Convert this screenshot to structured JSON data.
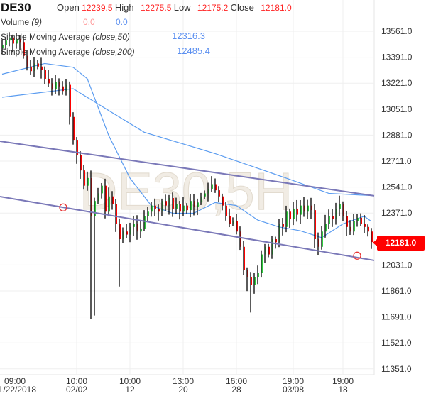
{
  "header": {
    "symbol": "DE30",
    "open_label": "Open",
    "open": "12239.5",
    "high_label": "High",
    "high": "12275.5",
    "low_label": "Low",
    "low": "12175.2",
    "close_label": "Close",
    "close": "12181.0"
  },
  "indicators": {
    "volume_name": "Volume",
    "volume_param": "(9)",
    "volume_val1": "0.0",
    "volume_val2": "0.0",
    "sma50_name": "Simple Moving Average",
    "sma50_param": "(close,50)",
    "sma50_value": "12316.3",
    "sma200_name": "Simple Moving Average",
    "sma200_param": "(close,200)",
    "sma200_value": "12485.4"
  },
  "current_price_label": "12181.0",
  "colors": {
    "up": "#2ecc40",
    "down": "#ff0000",
    "wick": "#000000",
    "sma": "#5b9cf0",
    "trend": "#7a78b8",
    "marker": "#e83030",
    "watermark": "#ece6dc"
  },
  "chart_data": {
    "type": "candlestick",
    "title": "DE30,5H",
    "watermark": "DE30,5H",
    "ylim": [
      11290,
      13640
    ],
    "y_ticks": [
      "13561.0",
      "13391.0",
      "13221.0",
      "13051.0",
      "12881.0",
      "12711.0",
      "12541.0",
      "12371.0",
      "12031.0",
      "11861.0",
      "11691.0",
      "11521.0",
      "11351.0"
    ],
    "x_ticks": [
      {
        "index": 3,
        "time": "09:00",
        "date": "01/22/2018"
      },
      {
        "index": 21,
        "time": "10:00",
        "date": "02/02"
      },
      {
        "index": 36,
        "time": "10:00",
        "date": "12"
      },
      {
        "index": 51,
        "time": "13:00",
        "date": "20"
      },
      {
        "index": 66,
        "time": "16:00",
        "date": "28"
      },
      {
        "index": 82,
        "time": "19:00",
        "date": "03/08"
      },
      {
        "index": 96,
        "time": "19:00",
        "date": "18"
      }
    ],
    "closes": [
      13470,
      13500,
      13520,
      13480,
      13510,
      13490,
      13400,
      13330,
      13300,
      13350,
      13330,
      13310,
      13250,
      13220,
      13180,
      13230,
      13200,
      13170,
      13210,
      13000,
      12850,
      12750,
      12650,
      12550,
      12600,
      12350,
      12450,
      12500,
      12550,
      12380,
      12480,
      12430,
      12300,
      12200,
      12250,
      12230,
      12280,
      12300,
      12250,
      12270,
      12350,
      12380,
      12420,
      12400,
      12380,
      12450,
      12420,
      12470,
      12400,
      12430,
      12380,
      12420,
      12390,
      12450,
      12410,
      12440,
      12480,
      12500,
      12530,
      12560,
      12520,
      12480,
      12420,
      12350,
      12300,
      12320,
      12250,
      12150,
      12000,
      11950,
      11900,
      11950,
      11980,
      12100,
      12150,
      12100,
      12200,
      12180,
      12300,
      12280,
      12380,
      12330,
      12400,
      12360,
      12420,
      12380,
      12420,
      12390,
      12200,
      12150,
      12250,
      12300,
      12350,
      12330,
      12400,
      12430,
      12350,
      12280,
      12250,
      12320,
      12340,
      12300,
      12280,
      12250,
      12181
    ],
    "extreme_lows": [
      {
        "index": 25,
        "low": 11680
      },
      {
        "index": 26,
        "low": 11700
      },
      {
        "index": 33,
        "low": 11890
      },
      {
        "index": 70,
        "low": 11720
      },
      {
        "index": 69,
        "low": 11860
      }
    ],
    "sma50": [
      [
        0,
        13280
      ],
      [
        12,
        13350
      ],
      [
        20,
        13325
      ],
      [
        24,
        13250
      ],
      [
        30,
        12880
      ],
      [
        36,
        12600
      ],
      [
        42,
        12420
      ],
      [
        48,
        12370
      ],
      [
        54,
        12370
      ],
      [
        60,
        12440
      ],
      [
        66,
        12420
      ],
      [
        72,
        12325
      ],
      [
        78,
        12280
      ],
      [
        84,
        12255
      ],
      [
        90,
        12210
      ],
      [
        96,
        12300
      ],
      [
        102,
        12350
      ],
      [
        104,
        12316.3
      ]
    ],
    "sma200": [
      [
        0,
        13129
      ],
      [
        20,
        13185
      ],
      [
        40,
        12900
      ],
      [
        60,
        12760
      ],
      [
        80,
        12600
      ],
      [
        92,
        12500
      ],
      [
        104,
        12485.4
      ]
    ],
    "trendlines": [
      {
        "name": "upper-channel",
        "points": [
          [
            -0.6,
            12841
          ],
          [
            104.8,
            12484
          ]
        ]
      },
      {
        "name": "lower-channel",
        "points": [
          [
            -0.6,
            12479
          ],
          [
            104.8,
            12061
          ]
        ]
      }
    ],
    "markers": [
      {
        "index": 17.2,
        "price": 12408
      },
      {
        "index": 100,
        "price": 12092
      }
    ]
  }
}
